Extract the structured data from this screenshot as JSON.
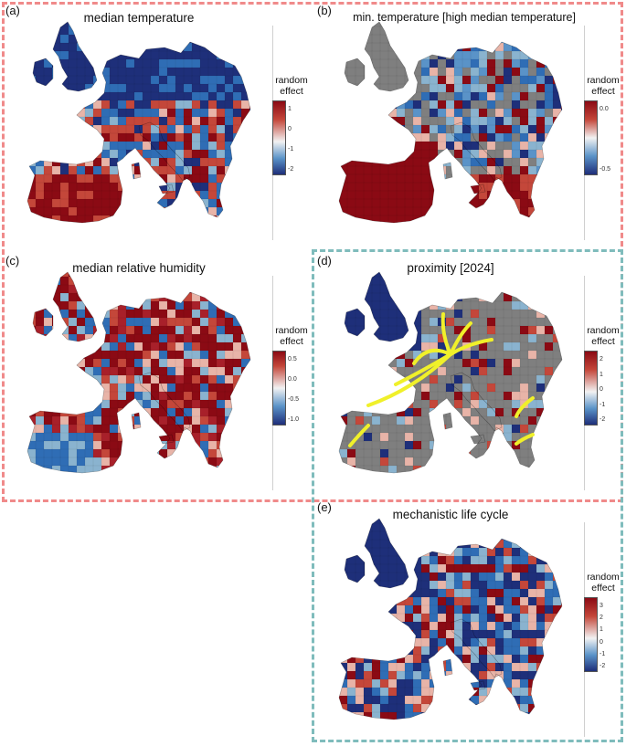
{
  "colors": {
    "pink_box": "#f08a8a",
    "teal_box": "#7fbcbc",
    "dark_red": "#8b0a14",
    "mid_red": "#c4473a",
    "light_pink": "#e8b4a8",
    "white": "#f2f2f2",
    "light_blue": "#8ab3cf",
    "mid_blue": "#2f6db5",
    "dark_blue": "#1e2f7a",
    "grey": "#7f7f7f",
    "arrow_yellow": "#f0f02a"
  },
  "legend_label": [
    "random",
    "effect"
  ],
  "panels": [
    {
      "letter": "(a)",
      "title": "median temperature",
      "ticks": [
        "1",
        "0",
        "-1",
        "-2"
      ],
      "palette": [
        "#1e2f7a",
        "#2f6db5",
        "#2f6db5",
        "#8ab3cf",
        "#e8b4a8",
        "#c4473a",
        "#c4473a",
        "#8b0a14"
      ]
    },
    {
      "letter": "(b)",
      "title": "min. temperature [high median temperature]",
      "ticks": [
        "0.0",
        "-0.5"
      ],
      "palette": [
        "#7f7f7f",
        "#7f7f7f",
        "#2f6db5",
        "#5a93c8",
        "#1e2f7a",
        "#8ab3cf",
        "#8b0a14",
        "#e8b4a8"
      ]
    },
    {
      "letter": "(c)",
      "title": "median relative humidity",
      "ticks": [
        "0.5",
        "0.0",
        "-0.5",
        "-1.0"
      ],
      "palette": [
        "#8b0a14",
        "#8b0a14",
        "#8b0a14",
        "#a8202a",
        "#c4473a",
        "#e8b4a8",
        "#8ab3cf",
        "#2f6db5"
      ]
    },
    {
      "letter": "(d)",
      "title": "proximity [2024]",
      "ticks": [
        "2",
        "1",
        "0",
        "-1",
        "-2"
      ],
      "palette": [
        "#7f7f7f",
        "#7f7f7f",
        "#7f7f7f",
        "#8b0a14",
        "#c4473a",
        "#e8b4a8",
        "#1e2f7a",
        "#8ab3cf"
      ]
    },
    {
      "letter": "(e)",
      "title": "mechanistic life cycle",
      "ticks": [
        "3",
        "2",
        "1",
        "0",
        "-1",
        "-2"
      ],
      "palette": [
        "#1e2f7a",
        "#1e2f7a",
        "#2f6db5",
        "#2f6db5",
        "#8ab3cf",
        "#e8b4a8",
        "#c4473a",
        "#8b0a14"
      ]
    }
  ]
}
